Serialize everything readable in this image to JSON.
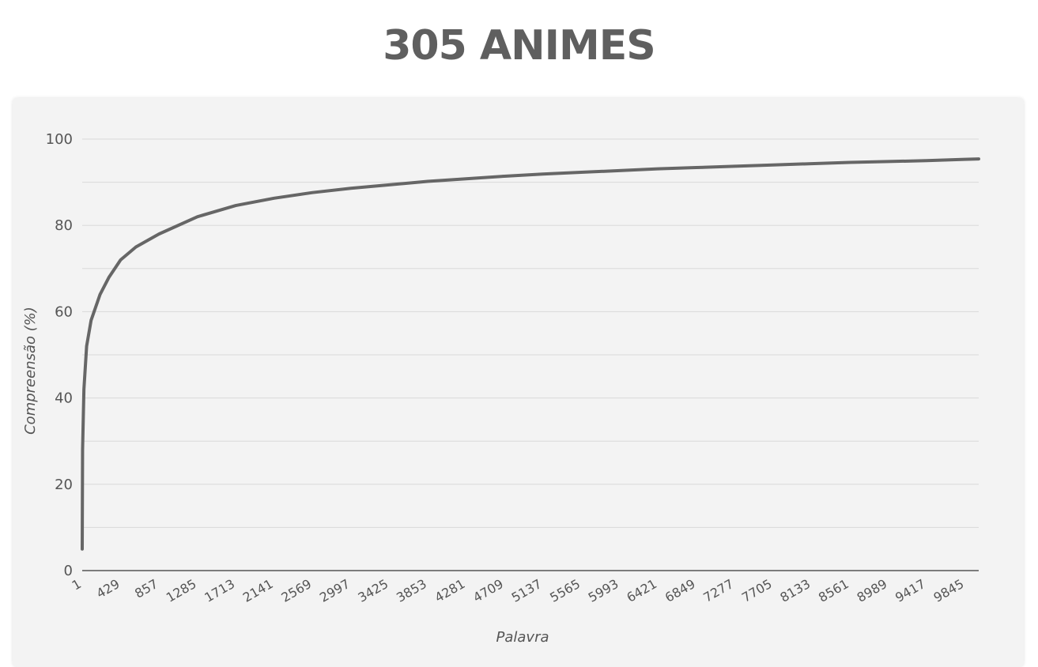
{
  "page": {
    "title": "305 ANIMES"
  },
  "colors": {
    "line": "#666666",
    "grid": "#d9d9d9",
    "axis": "#555555",
    "panel": "#f3f3f3"
  },
  "chart_data": {
    "type": "line",
    "title": "305 ANIMES",
    "xlabel": "Palavra",
    "ylabel": "Compreensão (%)",
    "xlim": [
      1,
      10000
    ],
    "ylim": [
      0,
      100
    ],
    "y_ticks": [
      0,
      20,
      40,
      60,
      80,
      100
    ],
    "y_tick_labels": [
      "0",
      "20",
      "40",
      "60",
      "80",
      "100"
    ],
    "y_gridlines": [
      0,
      10,
      20,
      30,
      40,
      50,
      60,
      70,
      80,
      90,
      100
    ],
    "x_ticks": [
      1,
      429,
      857,
      1285,
      1713,
      2141,
      2569,
      2997,
      3425,
      3853,
      4281,
      4709,
      5137,
      5565,
      5993,
      6421,
      6849,
      7277,
      7705,
      8133,
      8561,
      8989,
      9417,
      9845
    ],
    "x_tick_labels": [
      "1",
      "429",
      "857",
      "1285",
      "1713",
      "2141",
      "2569",
      "2997",
      "3425",
      "3853",
      "4281",
      "4709",
      "5137",
      "5565",
      "5993",
      "6421",
      "6849",
      "7277",
      "7705",
      "8133",
      "8561",
      "8989",
      "9417",
      "9845"
    ],
    "grid": true,
    "legend": "none",
    "series": [
      {
        "x": [
          1,
          5,
          20,
          50,
          100,
          200,
          300,
          429,
          600,
          857,
          1285,
          1713,
          2141,
          2569,
          2997,
          3425,
          3853,
          4281,
          4709,
          5137,
          5565,
          5993,
          6421,
          6849,
          7277,
          7705,
          8133,
          8561,
          8989,
          9417,
          9845,
          10000
        ],
        "values": [
          5,
          28,
          42,
          52,
          58,
          64,
          68,
          72,
          75,
          78,
          82,
          84.6,
          86.3,
          87.6,
          88.6,
          89.4,
          90.2,
          90.8,
          91.4,
          91.9,
          92.3,
          92.7,
          93.1,
          93.4,
          93.7,
          94.0,
          94.3,
          94.6,
          94.8,
          95.0,
          95.3,
          95.4
        ]
      }
    ]
  }
}
